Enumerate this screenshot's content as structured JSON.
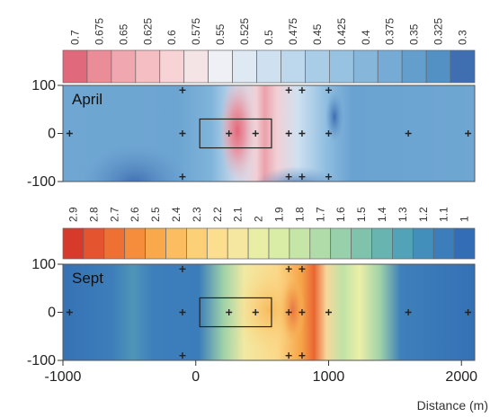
{
  "chart_data": [
    {
      "type": "heatmap",
      "title": "April",
      "colorbar": {
        "labels": [
          "0.7",
          "0.675",
          "0.65",
          "0.625",
          "0.6",
          "0.575",
          "0.55",
          "0.525",
          "0.5",
          "0.475",
          "0.45",
          "0.425",
          "0.4",
          "0.375",
          "0.35",
          "0.325",
          "0.3"
        ],
        "colors": [
          "#e06a7c",
          "#ea8d98",
          "#f0a7af",
          "#f5bec3",
          "#f8d3d5",
          "#f5e4e6",
          "#eef0f5",
          "#dfe9f3",
          "#cfe1f0",
          "#bdd7ec",
          "#aacde7",
          "#98c2e1",
          "#86b7db",
          "#75abd4",
          "#649ecc",
          "#5390c4",
          "#3f6fb0"
        ]
      },
      "x_ticks": [
        "-1000",
        "0",
        "1000",
        "2000"
      ],
      "x_range": [
        -1000,
        2100
      ],
      "y_ticks": [
        "100",
        "0",
        "-100"
      ],
      "y_range": [
        -100,
        100
      ],
      "points": [
        {
          "x": -950,
          "y": 0
        },
        {
          "x": -100,
          "y": 90
        },
        {
          "x": -100,
          "y": 0
        },
        {
          "x": -100,
          "y": -90
        },
        {
          "x": 250,
          "y": 0
        },
        {
          "x": 450,
          "y": 0
        },
        {
          "x": 700,
          "y": 90
        },
        {
          "x": 700,
          "y": 0
        },
        {
          "x": 700,
          "y": -90
        },
        {
          "x": 800,
          "y": 90
        },
        {
          "x": 800,
          "y": 0
        },
        {
          "x": 800,
          "y": -90
        },
        {
          "x": 1000,
          "y": 90
        },
        {
          "x": 1000,
          "y": 0
        },
        {
          "x": 1000,
          "y": -90
        },
        {
          "x": 1600,
          "y": 0
        },
        {
          "x": 2050,
          "y": 0
        }
      ],
      "box": {
        "x0": 30,
        "x1": 570,
        "y0": -30,
        "y1": 30
      }
    },
    {
      "type": "heatmap",
      "title": "Sept",
      "xlabel": "Distance (m)",
      "colorbar": {
        "labels": [
          "2.9",
          "2.8",
          "2.7",
          "2.6",
          "2.5",
          "2.4",
          "2.3",
          "2.2",
          "2.1",
          "2",
          "1.9",
          "1.8",
          "1.7",
          "1.6",
          "1.5",
          "1.4",
          "1.3",
          "1.2",
          "1.1",
          "1"
        ],
        "colors": [
          "#d73a2b",
          "#e4552f",
          "#ee7033",
          "#f58d3c",
          "#f9a84b",
          "#fbbd5f",
          "#fcd076",
          "#fcdf8e",
          "#f5e79f",
          "#e9eea6",
          "#d9eda6",
          "#c5e6a6",
          "#afdca8",
          "#97d0aa",
          "#7fc3ad",
          "#67b4b1",
          "#52a3b8",
          "#428fbc",
          "#3b7ebb",
          "#336db6"
        ]
      },
      "x_ticks": [
        "-1000",
        "0",
        "1000",
        "2000"
      ],
      "x_range": [
        -1000,
        2100
      ],
      "y_ticks": [
        "100",
        "0",
        "-100"
      ],
      "y_range": [
        -100,
        100
      ],
      "points": [
        {
          "x": -950,
          "y": 0
        },
        {
          "x": -100,
          "y": 90
        },
        {
          "x": -100,
          "y": 0
        },
        {
          "x": -100,
          "y": -90
        },
        {
          "x": 250,
          "y": 0
        },
        {
          "x": 450,
          "y": 0
        },
        {
          "x": 700,
          "y": 90
        },
        {
          "x": 700,
          "y": 0
        },
        {
          "x": 700,
          "y": -90
        },
        {
          "x": 800,
          "y": 90
        },
        {
          "x": 800,
          "y": 0
        },
        {
          "x": 800,
          "y": -90
        },
        {
          "x": 1000,
          "y": 0
        },
        {
          "x": 1600,
          "y": 0
        },
        {
          "x": 2050,
          "y": 0
        }
      ],
      "box": {
        "x0": 30,
        "x1": 570,
        "y0": -30,
        "y1": 30
      }
    }
  ]
}
